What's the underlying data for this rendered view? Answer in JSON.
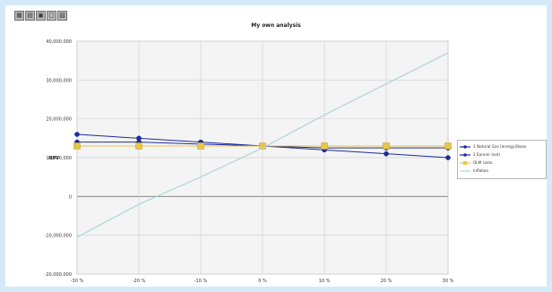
{
  "toolbar": {
    "buttons": [
      {
        "icon": "chart-icon"
      },
      {
        "icon": "table-icon"
      },
      {
        "icon": "print-icon"
      },
      {
        "icon": "export-icon"
      },
      {
        "icon": "settings-icon"
      }
    ]
  },
  "chart_data": {
    "type": "line",
    "title": "My own analysis",
    "ylabel": "NPV",
    "xlabel": "",
    "x_categories": [
      "-30 %",
      "-20 %",
      "-10 %",
      "0 %",
      "10 %",
      "20 %",
      "30 %"
    ],
    "y_ticks": [
      -20000000,
      -10000000,
      0,
      10000000,
      20000000,
      30000000,
      40000000
    ],
    "y_tick_labels": [
      "-20,000,000",
      "-10,000,000",
      "0",
      "10,000,000",
      "20,000,000",
      "30,000,000",
      "40,000,000"
    ],
    "ylim": [
      -20000000,
      40000000
    ],
    "grid": true,
    "legend_position": "right",
    "series": [
      {
        "name": "1 Natural Gas [energy]/base",
        "color": "#1f2c9b",
        "marker": "circle",
        "values": [
          16000000,
          15000000,
          14000000,
          13000000,
          12000000,
          11000000,
          10000000
        ]
      },
      {
        "name": "2 Eurenir (est)",
        "color": "#1f2c9b",
        "marker": "circle",
        "values": [
          14000000,
          14000000,
          13500000,
          13000000,
          12500000,
          12500000,
          12500000
        ]
      },
      {
        "name": "OLM costs",
        "color": "#e8c64a",
        "marker": "square",
        "values": [
          13000000,
          13000000,
          13000000,
          13000000,
          13000000,
          13000000,
          13000000
        ]
      },
      {
        "name": "Inflation",
        "color": "#a9d4d2",
        "marker": "none",
        "values": [
          -10500000,
          -2000000,
          5000000,
          12500000,
          21000000,
          29000000,
          37000000
        ]
      }
    ]
  }
}
